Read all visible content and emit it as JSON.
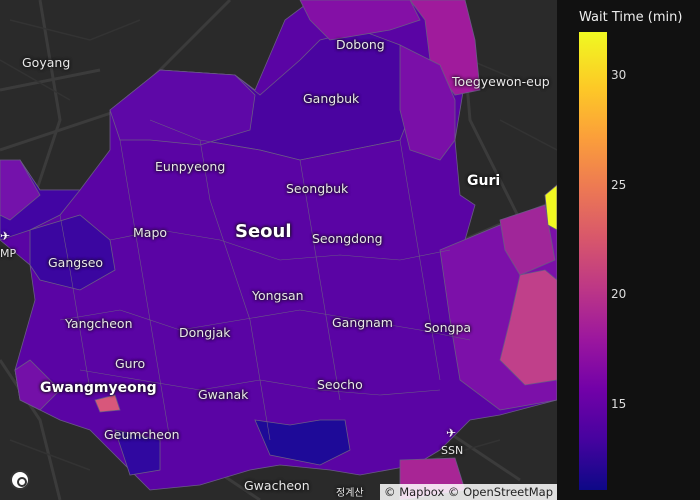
{
  "map": {
    "labels": {
      "goyang": "Goyang",
      "dobong": "Dobong",
      "toegyewon": "Toegyewon-eup",
      "gangbuk": "Gangbuk",
      "eunpyeong": "Eunpyeong",
      "seongbuk": "Seongbuk",
      "guri": "Guri",
      "mapo": "Mapo",
      "seoul": "Seoul",
      "seongdong": "Seongdong",
      "gangseo": "Gangseo",
      "gmp": "MP",
      "yongsan": "Yongsan",
      "yangcheon": "Yangcheon",
      "dongjak": "Dongjak",
      "gangnam": "Gangnam",
      "songpa": "Songpa",
      "guro": "Guro",
      "gwangmyeong": "Gwangmyeong",
      "gwanak": "Gwanak",
      "seocho": "Seocho",
      "geumcheon": "Geumcheon",
      "ssn": "SSN",
      "gwacheon": "Gwacheon",
      "gwacheon_kr": "정계산"
    },
    "attribution": "© Mapbox © OpenStreetMap",
    "colors": {
      "background": "#2a2a2a",
      "roads": "#3d3d3d",
      "borders": "#6a5a86"
    }
  },
  "colorbar": {
    "title": "Wait Time (min)",
    "ticks": [
      "30",
      "25",
      "20",
      "15"
    ],
    "colorscale": "Plasma",
    "range": [
      12,
      32
    ]
  }
}
